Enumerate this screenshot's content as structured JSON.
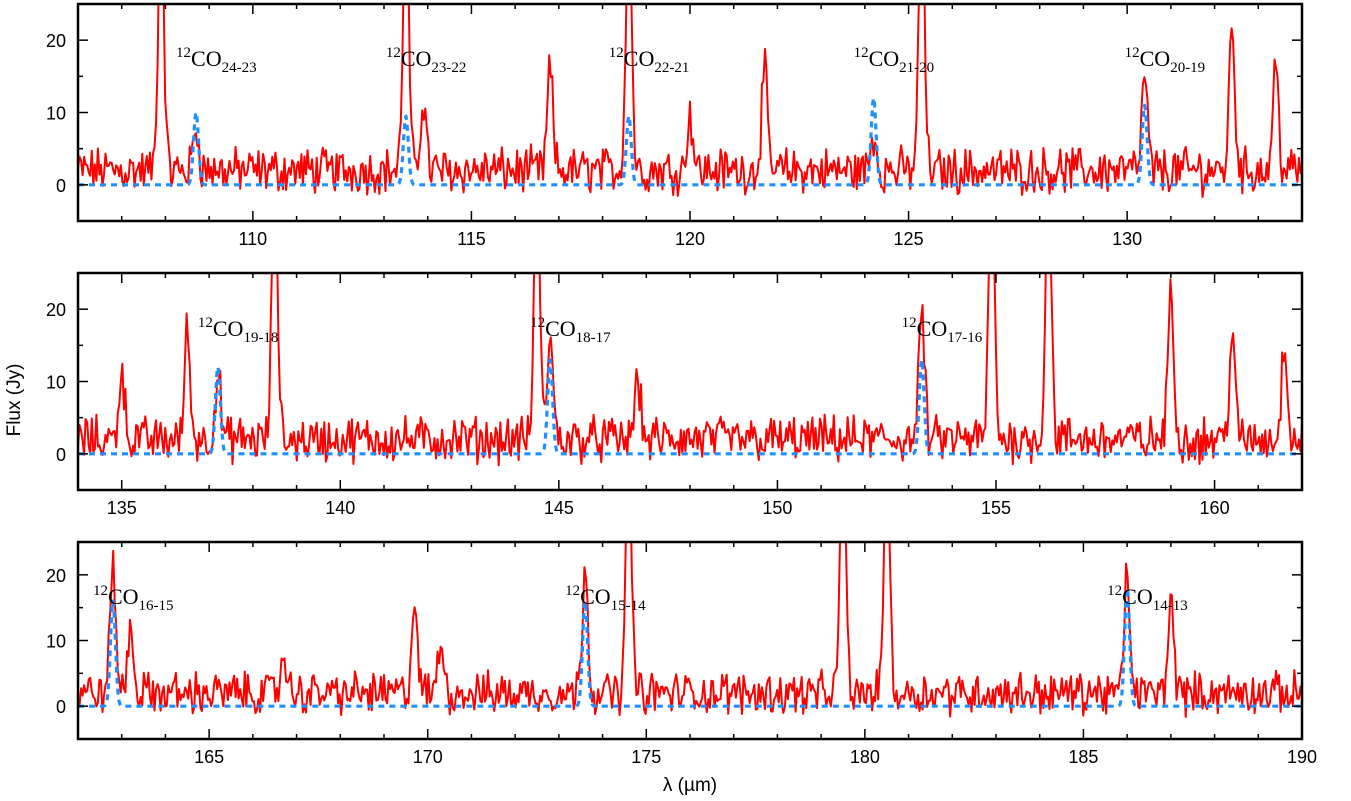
{
  "figure": {
    "ylabel": "Flux (Jy)",
    "xlabel": "λ (µm)"
  },
  "colors": {
    "observed": "#ff0000",
    "model": "#1e90ff",
    "axis": "#000000"
  },
  "chart_data": [
    {
      "type": "line",
      "panel": "top",
      "xlim": [
        106,
        134
      ],
      "ylim": [
        -5,
        25
      ],
      "xticks": [
        110,
        115,
        120,
        125,
        130
      ],
      "yticks": [
        0,
        10,
        20
      ],
      "grid": false,
      "lines": [
        {
          "label": "CO",
          "sup": "12",
          "sub": "24-23",
          "x": 108.7
        },
        {
          "label": "CO",
          "sup": "12",
          "sub": "23-22",
          "x": 113.5
        },
        {
          "label": "CO",
          "sup": "12",
          "sub": "22-21",
          "x": 118.6
        },
        {
          "label": "CO",
          "sup": "12",
          "sub": "21-20",
          "x": 124.2
        },
        {
          "label": "CO",
          "sup": "12",
          "sub": "20-19",
          "x": 130.4
        }
      ],
      "series": [
        {
          "style": "solid",
          "color": "#ff0000",
          "baseline": 2,
          "peaks": [
            [
              107.9,
              40
            ],
            [
              108.7,
              8
            ],
            [
              113.5,
              40
            ],
            [
              113.9,
              12
            ],
            [
              116.8,
              16
            ],
            [
              118.6,
              40
            ],
            [
              120,
              10
            ],
            [
              121.7,
              16
            ],
            [
              124.2,
              7
            ],
            [
              125.3,
              40
            ],
            [
              130.4,
              15
            ],
            [
              132.4,
              22
            ],
            [
              133.4,
              17
            ]
          ]
        },
        {
          "style": "dotted",
          "color": "#1e90ff",
          "baseline": 0,
          "peaks": [
            [
              108.7,
              10
            ],
            [
              113.5,
              9.5
            ],
            [
              118.6,
              9.5
            ],
            [
              124.2,
              12
            ],
            [
              130.4,
              11
            ]
          ]
        }
      ]
    },
    {
      "type": "line",
      "panel": "middle",
      "xlim": [
        134,
        162
      ],
      "ylim": [
        -5,
        25
      ],
      "xticks": [
        135,
        140,
        145,
        150,
        155,
        160
      ],
      "yticks": [
        0,
        10,
        20
      ],
      "grid": false,
      "lines": [
        {
          "label": "CO",
          "sup": "12",
          "sub": "19-18",
          "x": 137.2
        },
        {
          "label": "CO",
          "sup": "12",
          "sub": "18-17",
          "x": 144.8
        },
        {
          "label": "CO",
          "sup": "12",
          "sub": "17-16",
          "x": 153.3
        }
      ],
      "series": [
        {
          "style": "solid",
          "color": "#ff0000",
          "baseline": 2,
          "peaks": [
            [
              135,
              12
            ],
            [
              136.5,
              17
            ],
            [
              137.2,
              11
            ],
            [
              138.5,
              40
            ],
            [
              144.5,
              40
            ],
            [
              144.8,
              17
            ],
            [
              146.8,
              11
            ],
            [
              153.3,
              20
            ],
            [
              154.9,
              40
            ],
            [
              156.2,
              40
            ],
            [
              159,
              23
            ],
            [
              160.4,
              17
            ],
            [
              161.6,
              16
            ]
          ]
        },
        {
          "style": "dotted",
          "color": "#1e90ff",
          "baseline": 0,
          "peaks": [
            [
              137.2,
              12
            ],
            [
              144.8,
              13
            ],
            [
              153.3,
              13
            ]
          ]
        }
      ]
    },
    {
      "type": "line",
      "panel": "bottom",
      "xlim": [
        162,
        190
      ],
      "ylim": [
        -5,
        25
      ],
      "xticks": [
        165,
        170,
        175,
        180,
        185,
        190
      ],
      "yticks": [
        0,
        10,
        20
      ],
      "grid": false,
      "lines": [
        {
          "label": "CO",
          "sup": "12",
          "sub": "16-15",
          "x": 162.8
        },
        {
          "label": "CO",
          "sup": "12",
          "sub": "15-14",
          "x": 173.6
        },
        {
          "label": "CO",
          "sup": "12",
          "sub": "14-13",
          "x": 186
        }
      ],
      "series": [
        {
          "style": "solid",
          "color": "#ff0000",
          "baseline": 2,
          "peaks": [
            [
              162.8,
              22
            ],
            [
              163.2,
              12
            ],
            [
              166.7,
              8
            ],
            [
              169.7,
              16
            ],
            [
              170.3,
              10
            ],
            [
              173.6,
              22
            ],
            [
              174.6,
              40
            ],
            [
              179.5,
              40
            ],
            [
              180.5,
              40
            ],
            [
              186,
              20
            ],
            [
              187,
              17
            ]
          ]
        },
        {
          "style": "dotted",
          "color": "#1e90ff",
          "baseline": 0,
          "peaks": [
            [
              162.8,
              16
            ],
            [
              173.6,
              16
            ],
            [
              186,
              18
            ]
          ]
        }
      ]
    }
  ]
}
